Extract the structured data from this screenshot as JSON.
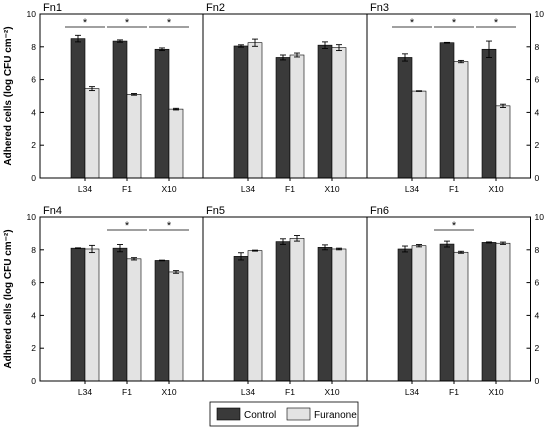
{
  "chart_data": {
    "type": "bar",
    "ylabel": "Adhered cells (log CFU cm⁻²)",
    "ylim": [
      0,
      10
    ],
    "yticks": [
      "0",
      "2",
      "4",
      "6",
      "8",
      "10"
    ],
    "categories": [
      "L34",
      "F1",
      "X10"
    ],
    "legend": {
      "placement": "bottom-center",
      "entries": [
        "Control",
        "Furanone"
      ]
    },
    "colors": {
      "control": "#3a3a3a",
      "furanone": "#e3e3e3",
      "frame": "#000000"
    },
    "significance_marker": "*",
    "panels": [
      {
        "title": "Fn1",
        "series": [
          {
            "name": "Control",
            "values": [
              8.5,
              8.35,
              7.85
            ],
            "errors": [
              0.2,
              0.07,
              0.08
            ]
          },
          {
            "name": "Furanone",
            "values": [
              5.45,
              5.1,
              4.2
            ],
            "errors": [
              0.12,
              0.05,
              0.05
            ]
          }
        ],
        "significant": [
          true,
          true,
          true
        ]
      },
      {
        "title": "Fn2",
        "series": [
          {
            "name": "Control",
            "values": [
              8.05,
              7.35,
              8.1
            ],
            "errors": [
              0.07,
              0.15,
              0.2
            ]
          },
          {
            "name": "Furanone",
            "values": [
              8.25,
              7.5,
              7.95
            ],
            "errors": [
              0.22,
              0.12,
              0.18
            ]
          }
        ],
        "significant": [
          false,
          false,
          false
        ]
      },
      {
        "title": "Fn3",
        "series": [
          {
            "name": "Control",
            "values": [
              7.35,
              8.25,
              7.85
            ],
            "errors": [
              0.22,
              0.02,
              0.5
            ]
          },
          {
            "name": "Furanone",
            "values": [
              5.3,
              7.1,
              4.4
            ],
            "errors": [
              0.02,
              0.07,
              0.1
            ]
          }
        ],
        "significant": [
          true,
          true,
          true
        ]
      },
      {
        "title": "Fn4",
        "series": [
          {
            "name": "Control",
            "values": [
              8.1,
              8.1,
              7.35
            ],
            "errors": [
              0.02,
              0.22,
              0.02
            ]
          },
          {
            "name": "Furanone",
            "values": [
              8.05,
              7.45,
              6.65
            ],
            "errors": [
              0.22,
              0.07,
              0.08
            ]
          }
        ],
        "significant": [
          false,
          true,
          true
        ]
      },
      {
        "title": "Fn5",
        "series": [
          {
            "name": "Control",
            "values": [
              7.6,
              8.5,
              8.15
            ],
            "errors": [
              0.22,
              0.17,
              0.15
            ]
          },
          {
            "name": "Furanone",
            "values": [
              7.95,
              8.7,
              8.05
            ],
            "errors": [
              0.03,
              0.17,
              0.05
            ]
          }
        ],
        "significant": [
          false,
          false,
          false
        ]
      },
      {
        "title": "Fn6",
        "series": [
          {
            "name": "Control",
            "values": [
              8.05,
              8.35,
              8.45
            ],
            "errors": [
              0.18,
              0.18,
              0.03
            ]
          },
          {
            "name": "Furanone",
            "values": [
              8.25,
              7.85,
              8.4
            ],
            "errors": [
              0.07,
              0.06,
              0.07
            ]
          }
        ],
        "significant": [
          false,
          true,
          false
        ]
      }
    ]
  }
}
